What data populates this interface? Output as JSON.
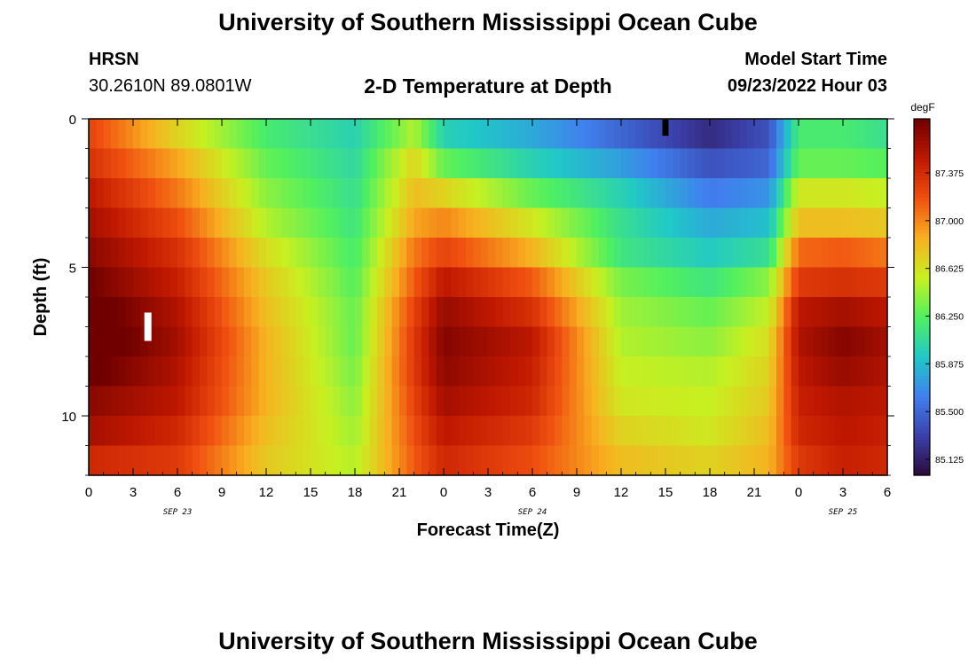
{
  "header": {
    "title": "University of Southern Mississippi Ocean Cube",
    "station": "HRSN",
    "coords": "30.2610N  89.0801W",
    "subtitle": "2-D Temperature at Depth",
    "model_start_label": "Model Start Time",
    "model_start_value": "09/23/2022 Hour 03"
  },
  "footer": {
    "title": "University of Southern Mississippi Ocean Cube"
  },
  "chart_data": {
    "type": "heatmap",
    "xlabel": "Forecast Time(Z)",
    "ylabel": "Depth (ft)",
    "x_tick_labels": [
      "0",
      "3",
      "6",
      "9",
      "12",
      "15",
      "18",
      "21",
      "0",
      "3",
      "6",
      "9",
      "12",
      "15",
      "18",
      "21",
      "0",
      "3",
      "6"
    ],
    "x_date_labels": [
      {
        "label": "SEP 23",
        "at_hour": 6
      },
      {
        "label": "SEP 24",
        "at_hour": 30
      },
      {
        "label": "SEP 25",
        "at_hour": 51
      }
    ],
    "x_range_hours": [
      0,
      54
    ],
    "y_tick_labels": [
      "0",
      "5",
      "10"
    ],
    "y_range_ft": [
      0,
      12
    ],
    "depth_ft": [
      0.5,
      1.5,
      2.5,
      3.5,
      4.5,
      5.5,
      6.5,
      7.5,
      8.5,
      9.5,
      10.5,
      11.5
    ],
    "time_hours": [
      0,
      6,
      12,
      18,
      22,
      24,
      30,
      36,
      42,
      46,
      48,
      51,
      54
    ],
    "values_degF": [
      [
        87.25,
        86.7,
        86.2,
        86.0,
        86.5,
        86.0,
        85.8,
        85.5,
        85.2,
        85.4,
        86.2,
        86.2,
        86.1
      ],
      [
        87.35,
        86.9,
        86.3,
        86.05,
        86.7,
        86.3,
        86.0,
        85.75,
        85.4,
        85.5,
        86.3,
        86.3,
        86.25
      ],
      [
        87.5,
        87.05,
        86.4,
        86.1,
        86.8,
        86.7,
        86.3,
        86.0,
        85.6,
        85.7,
        86.6,
        86.6,
        86.55
      ],
      [
        87.6,
        87.2,
        86.5,
        86.15,
        86.9,
        87.0,
        86.6,
        86.1,
        85.8,
        85.9,
        86.8,
        86.8,
        86.75
      ],
      [
        87.7,
        87.35,
        86.65,
        86.2,
        87.05,
        87.25,
        86.85,
        86.15,
        85.95,
        86.1,
        87.1,
        87.15,
        87.05
      ],
      [
        87.8,
        87.45,
        86.75,
        86.25,
        87.15,
        87.5,
        87.15,
        86.35,
        86.15,
        86.4,
        87.3,
        87.35,
        87.3
      ],
      [
        87.9,
        87.55,
        86.8,
        86.3,
        87.25,
        87.65,
        87.35,
        86.45,
        86.3,
        86.55,
        87.5,
        87.6,
        87.5
      ],
      [
        87.95,
        87.6,
        86.85,
        86.3,
        87.3,
        87.72,
        87.5,
        86.5,
        86.4,
        86.65,
        87.55,
        87.72,
        87.6
      ],
      [
        87.85,
        87.55,
        86.85,
        86.35,
        87.3,
        87.68,
        87.45,
        86.55,
        86.5,
        86.7,
        87.5,
        87.65,
        87.55
      ],
      [
        87.7,
        87.5,
        86.85,
        86.4,
        87.25,
        87.6,
        87.4,
        86.6,
        86.55,
        86.75,
        87.45,
        87.55,
        87.5
      ],
      [
        87.6,
        87.4,
        86.8,
        86.45,
        87.2,
        87.5,
        87.3,
        86.7,
        86.6,
        86.8,
        87.4,
        87.5,
        87.45
      ],
      [
        87.4,
        87.3,
        86.75,
        86.5,
        87.15,
        87.4,
        87.2,
        86.8,
        86.7,
        86.85,
        87.3,
        87.45,
        87.4
      ]
    ],
    "colorbar": {
      "unit": "degF",
      "ticks": [
        "85.125",
        "85.500",
        "85.875",
        "86.250",
        "86.625",
        "87.000",
        "87.375"
      ],
      "range": [
        85.0,
        87.8
      ],
      "colors": [
        "#2a0a3a",
        "#3b3fa8",
        "#4080ee",
        "#20c8c8",
        "#50f060",
        "#c8f020",
        "#f8b020",
        "#f05010",
        "#c01800",
        "#700000"
      ]
    },
    "markers": [
      {
        "name": "white marker",
        "color": "#ffffff",
        "hour": 4.0,
        "depth_ft": 7.0
      },
      {
        "name": "black marker",
        "color": "#000000",
        "hour": 39.0,
        "depth_ft": 0.3
      }
    ]
  }
}
